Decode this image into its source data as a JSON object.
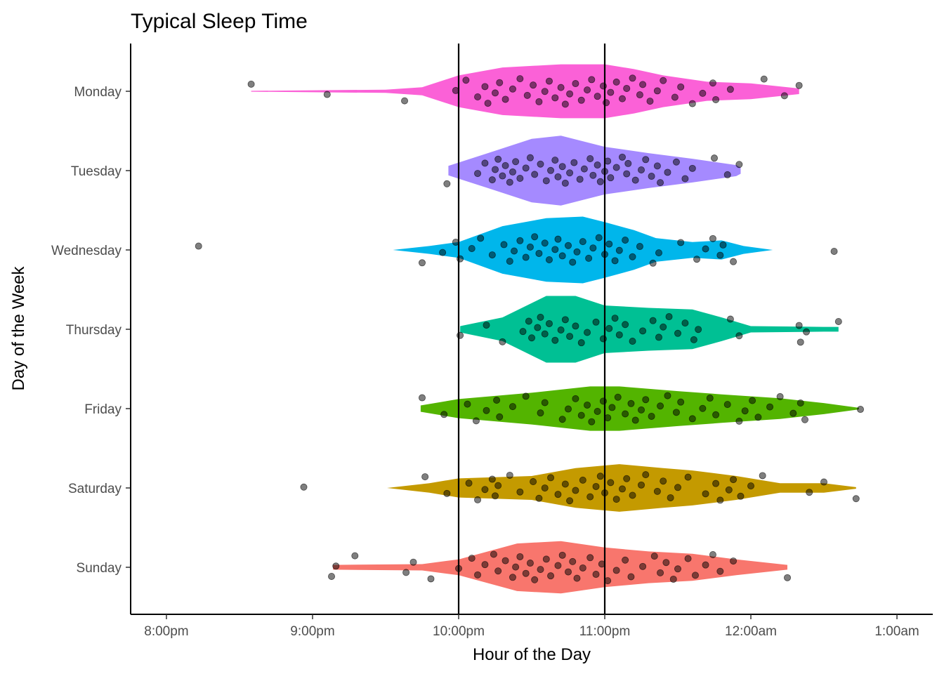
{
  "chart_data": {
    "type": "violin",
    "title": "Typical Sleep Time",
    "xlabel": "Hour of the Day",
    "ylabel": "Day of the Week",
    "xlim": [
      19.755,
      25.245
    ],
    "x_ticks": [
      20,
      21,
      22,
      23,
      24,
      25
    ],
    "x_tick_labels": [
      "8:00pm",
      "9:00pm",
      "10:00pm",
      "11:00pm",
      "12:00am",
      "1:00am"
    ],
    "reference_lines_x": [
      22,
      23
    ],
    "grid": false,
    "point_color": "#000000",
    "point_alpha": 0.5,
    "categories": [
      {
        "name": "Monday",
        "color": "#FB61D7",
        "violin": [
          [
            20.58,
            0.005
          ],
          [
            21.5,
            0.02
          ],
          [
            21.75,
            0.05
          ],
          [
            22.0,
            0.2
          ],
          [
            22.3,
            0.3
          ],
          [
            22.7,
            0.34
          ],
          [
            23.0,
            0.34
          ],
          [
            23.2,
            0.28
          ],
          [
            23.4,
            0.2
          ],
          [
            23.7,
            0.12
          ],
          [
            24.0,
            0.1
          ],
          [
            24.33,
            0.035
          ]
        ],
        "points": [
          21.1,
          20.58,
          21.63,
          21.98,
          22.05,
          22.13,
          22.18,
          22.2,
          22.25,
          22.28,
          22.32,
          22.37,
          22.42,
          22.47,
          22.51,
          22.55,
          22.59,
          22.62,
          22.66,
          22.7,
          22.73,
          22.76,
          22.8,
          22.84,
          22.88,
          22.91,
          22.95,
          22.99,
          23.01,
          23.04,
          23.08,
          23.12,
          23.15,
          23.19,
          23.24,
          23.26,
          23.31,
          23.36,
          23.4,
          23.48,
          23.52,
          23.6,
          23.67,
          23.74,
          23.76,
          23.86,
          24.09,
          24.23,
          24.33
        ]
      },
      {
        "name": "Tuesday",
        "color": "#A58AFF",
        "violin": [
          [
            21.93,
            0.06
          ],
          [
            22.2,
            0.22
          ],
          [
            22.5,
            0.4
          ],
          [
            22.7,
            0.44
          ],
          [
            23.0,
            0.3
          ],
          [
            23.3,
            0.22
          ],
          [
            23.6,
            0.15
          ],
          [
            23.9,
            0.07
          ],
          [
            23.93,
            0.04
          ]
        ],
        "points": [
          21.92,
          22.13,
          22.18,
          22.23,
          22.25,
          22.27,
          22.3,
          22.32,
          22.35,
          22.37,
          22.39,
          22.42,
          22.46,
          22.49,
          22.52,
          22.56,
          22.6,
          22.63,
          22.66,
          22.68,
          22.71,
          22.73,
          22.76,
          22.79,
          22.83,
          22.86,
          22.9,
          22.92,
          22.95,
          22.97,
          23.0,
          23.02,
          23.04,
          23.08,
          23.12,
          23.15,
          23.16,
          23.21,
          23.25,
          23.28,
          23.32,
          23.36,
          23.38,
          23.43,
          23.49,
          23.55,
          23.6,
          23.75,
          23.84,
          23.92
        ]
      },
      {
        "name": "Wednesday",
        "color": "#00B6EB",
        "violin": [
          [
            21.55,
            0.0
          ],
          [
            21.8,
            0.05
          ],
          [
            22.0,
            0.1
          ],
          [
            22.3,
            0.3
          ],
          [
            22.6,
            0.4
          ],
          [
            22.85,
            0.42
          ],
          [
            23.0,
            0.35
          ],
          [
            23.2,
            0.25
          ],
          [
            23.35,
            0.15
          ],
          [
            23.6,
            0.1
          ],
          [
            23.8,
            0.12
          ],
          [
            23.95,
            0.05
          ],
          [
            24.15,
            0.0
          ]
        ],
        "points": [
          20.22,
          21.75,
          21.89,
          21.98,
          22.01,
          22.09,
          22.15,
          22.23,
          22.31,
          22.35,
          22.38,
          22.42,
          22.46,
          22.49,
          22.52,
          22.55,
          22.59,
          22.62,
          22.66,
          22.68,
          22.71,
          22.75,
          22.78,
          22.81,
          22.85,
          22.89,
          22.92,
          22.96,
          23.0,
          23.03,
          23.07,
          23.1,
          23.14,
          23.19,
          23.24,
          23.33,
          23.37,
          23.52,
          23.63,
          23.69,
          23.74,
          23.79,
          23.81,
          23.88,
          24.57
        ]
      },
      {
        "name": "Thursday",
        "color": "#00C094",
        "violin": [
          [
            22.01,
            0.04
          ],
          [
            22.3,
            0.15
          ],
          [
            22.6,
            0.42
          ],
          [
            22.8,
            0.42
          ],
          [
            23.0,
            0.3
          ],
          [
            23.3,
            0.27
          ],
          [
            23.6,
            0.25
          ],
          [
            23.8,
            0.15
          ],
          [
            24.0,
            0.04
          ],
          [
            24.5,
            0.03
          ],
          [
            24.6,
            0.03
          ]
        ],
        "points": [
          22.01,
          22.19,
          22.3,
          22.44,
          22.48,
          22.5,
          22.54,
          22.56,
          22.59,
          22.62,
          22.66,
          22.7,
          22.73,
          22.76,
          22.8,
          22.84,
          22.88,
          22.94,
          22.99,
          23.03,
          23.07,
          23.1,
          23.14,
          23.19,
          23.26,
          23.33,
          23.37,
          23.4,
          23.44,
          23.5,
          23.55,
          23.61,
          23.64,
          23.86,
          23.92,
          24.33,
          24.34,
          24.38,
          24.6
        ]
      },
      {
        "name": "Friday",
        "color": "#53B400",
        "violin": [
          [
            21.74,
            0.04
          ],
          [
            22.0,
            0.12
          ],
          [
            22.5,
            0.2
          ],
          [
            22.9,
            0.28
          ],
          [
            23.1,
            0.28
          ],
          [
            23.5,
            0.22
          ],
          [
            23.8,
            0.18
          ],
          [
            24.2,
            0.13
          ],
          [
            24.5,
            0.07
          ],
          [
            24.74,
            0.01
          ]
        ],
        "points": [
          21.75,
          21.9,
          22.06,
          22.12,
          22.19,
          22.26,
          22.28,
          22.37,
          22.46,
          22.56,
          22.59,
          22.71,
          22.75,
          22.8,
          22.84,
          22.88,
          22.91,
          22.95,
          22.99,
          23.02,
          23.05,
          23.09,
          23.14,
          23.18,
          23.21,
          23.25,
          23.28,
          23.32,
          23.38,
          23.43,
          23.49,
          23.52,
          23.6,
          23.67,
          23.72,
          23.76,
          23.84,
          23.92,
          23.96,
          24.01,
          24.05,
          24.13,
          24.2,
          24.29,
          24.34,
          24.37,
          24.75
        ]
      },
      {
        "name": "Saturday",
        "color": "#C49A00",
        "violin": [
          [
            21.51,
            0.0
          ],
          [
            21.8,
            0.06
          ],
          [
            22.0,
            0.12
          ],
          [
            22.5,
            0.15
          ],
          [
            22.8,
            0.25
          ],
          [
            23.1,
            0.3
          ],
          [
            23.4,
            0.25
          ],
          [
            23.6,
            0.22
          ],
          [
            23.9,
            0.15
          ],
          [
            24.2,
            0.06
          ],
          [
            24.5,
            0.06
          ],
          [
            24.72,
            0.01
          ]
        ],
        "points": [
          20.94,
          21.77,
          21.92,
          22.07,
          22.13,
          22.18,
          22.23,
          22.25,
          22.27,
          22.35,
          22.42,
          22.51,
          22.55,
          22.59,
          22.63,
          22.68,
          22.73,
          22.76,
          22.8,
          22.85,
          22.9,
          22.94,
          22.97,
          23.0,
          23.04,
          23.08,
          23.12,
          23.15,
          23.19,
          23.25,
          23.28,
          23.36,
          23.4,
          23.45,
          23.5,
          23.57,
          23.69,
          23.76,
          23.79,
          23.85,
          23.88,
          23.93,
          24.0,
          24.08,
          24.4,
          24.5,
          24.72
        ]
      },
      {
        "name": "Sunday",
        "color": "#F8766D",
        "violin": [
          [
            21.14,
            0.03
          ],
          [
            21.75,
            0.04
          ],
          [
            22.0,
            0.1
          ],
          [
            22.4,
            0.3
          ],
          [
            22.7,
            0.33
          ],
          [
            23.0,
            0.25
          ],
          [
            23.3,
            0.2
          ],
          [
            23.6,
            0.17
          ],
          [
            23.9,
            0.1
          ],
          [
            24.25,
            0.03
          ]
        ],
        "points": [
          21.13,
          21.16,
          21.29,
          21.64,
          21.69,
          21.81,
          22.0,
          22.09,
          22.13,
          22.18,
          22.24,
          22.27,
          22.32,
          22.37,
          22.39,
          22.42,
          22.46,
          22.49,
          22.52,
          22.56,
          22.6,
          22.63,
          22.68,
          22.71,
          22.75,
          22.78,
          22.81,
          22.85,
          22.9,
          22.94,
          22.98,
          23.02,
          23.08,
          23.14,
          23.18,
          23.26,
          23.34,
          23.38,
          23.42,
          23.47,
          23.5,
          23.57,
          23.62,
          23.69,
          23.74,
          23.79,
          23.88,
          24.25
        ]
      }
    ]
  }
}
